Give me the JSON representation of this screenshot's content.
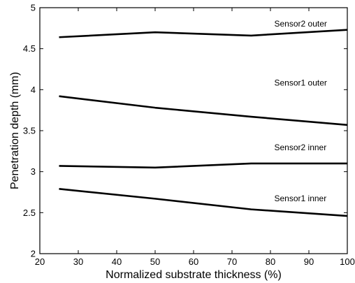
{
  "chart_data": {
    "type": "line",
    "title": "",
    "xlabel": "Normalized substrate thickness (%)",
    "ylabel": "Penetration depth (mm)",
    "xlim": [
      20,
      100
    ],
    "ylim": [
      2,
      5
    ],
    "xticks": [
      20,
      30,
      40,
      50,
      60,
      70,
      80,
      90,
      100
    ],
    "yticks": [
      2,
      2.5,
      3,
      3.5,
      4,
      4.5,
      5
    ],
    "ytick_labels": [
      "2",
      "2.5",
      "3",
      "3.5",
      "4",
      "4.5",
      "5"
    ],
    "grid": false,
    "legend": "none",
    "series": [
      {
        "name": "Sensor2 outer",
        "x": [
          25,
          50,
          75,
          100
        ],
        "y": [
          4.64,
          4.7,
          4.66,
          4.73
        ]
      },
      {
        "name": "Sensor1 outer",
        "x": [
          25,
          50,
          75,
          100
        ],
        "y": [
          3.92,
          3.78,
          3.67,
          3.57
        ]
      },
      {
        "name": "Sensor2 inner",
        "x": [
          25,
          50,
          75,
          100
        ],
        "y": [
          3.07,
          3.05,
          3.1,
          3.1
        ]
      },
      {
        "name": "Sensor1 inner",
        "x": [
          25,
          50,
          75,
          100
        ],
        "y": [
          2.79,
          2.67,
          2.54,
          2.46
        ]
      }
    ],
    "annotations": [
      {
        "text": "Sensor2 outer",
        "x": 81,
        "y": 4.77
      },
      {
        "text": "Sensor1 outer",
        "x": 81,
        "y": 4.05
      },
      {
        "text": "Sensor2 inner",
        "x": 81,
        "y": 3.26
      },
      {
        "text": "Sensor1 inner",
        "x": 81,
        "y": 2.64
      }
    ]
  }
}
